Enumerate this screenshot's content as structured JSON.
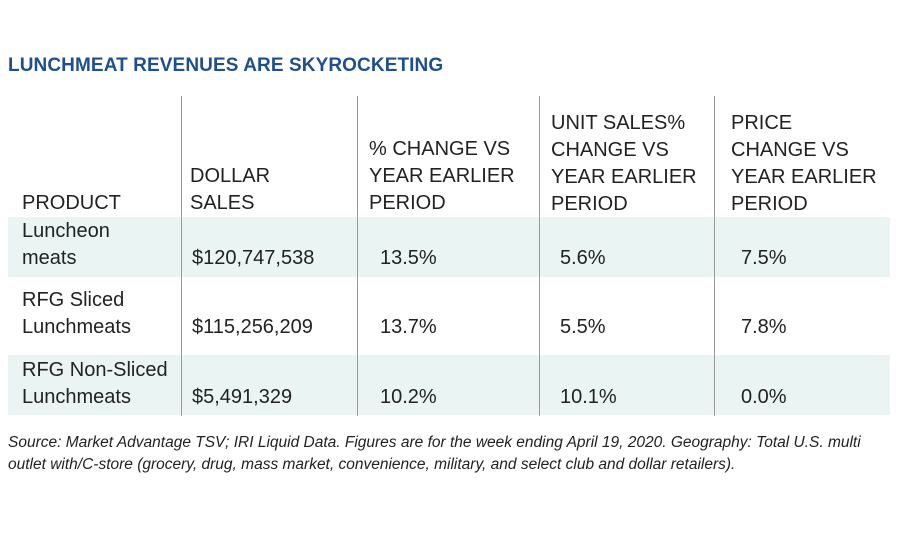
{
  "title": "LUNCHMEAT REVENUES ARE SKYROCKETING",
  "columns": [
    "PRODUCT",
    "DOLLAR\nSALES",
    "% CHANGE VS\nYEAR EARLIER\nPERIOD",
    "UNIT SALES%\nCHANGE VS\nYEAR EARLIER\nPERIOD",
    "PRICE\nCHANGE VS\nYEAR EARLIER\nPERIOD"
  ],
  "rows": [
    {
      "product": [
        "Luncheon",
        "meats"
      ],
      "dollar_sales": "$120,747,538",
      "pct_change": "13.5%",
      "unit_change": "5.6%",
      "price_change": "7.5%"
    },
    {
      "product": [
        "RFG Sliced",
        "Lunchmeats"
      ],
      "dollar_sales": "$115,256,209",
      "pct_change": "13.7%",
      "unit_change": "5.5%",
      "price_change": "7.8%"
    },
    {
      "product": [
        "RFG Non-Sliced",
        "Lunchmeats"
      ],
      "dollar_sales": "$5,491,329",
      "pct_change": "10.2%",
      "unit_change": "10.1%",
      "price_change": "0.0%"
    }
  ],
  "source": "Source: Market Advantage TSV; IRI Liquid Data. Figures are for the week ending April 19, 2020. Geography: Total U.S. multi outlet with/C-store (grocery, drug, mass market, convenience, military, and select club and dollar retailers).",
  "colors": {
    "title": "#1f4f8f",
    "band": "#eaf4f3",
    "divider": "#9a9a9a"
  }
}
